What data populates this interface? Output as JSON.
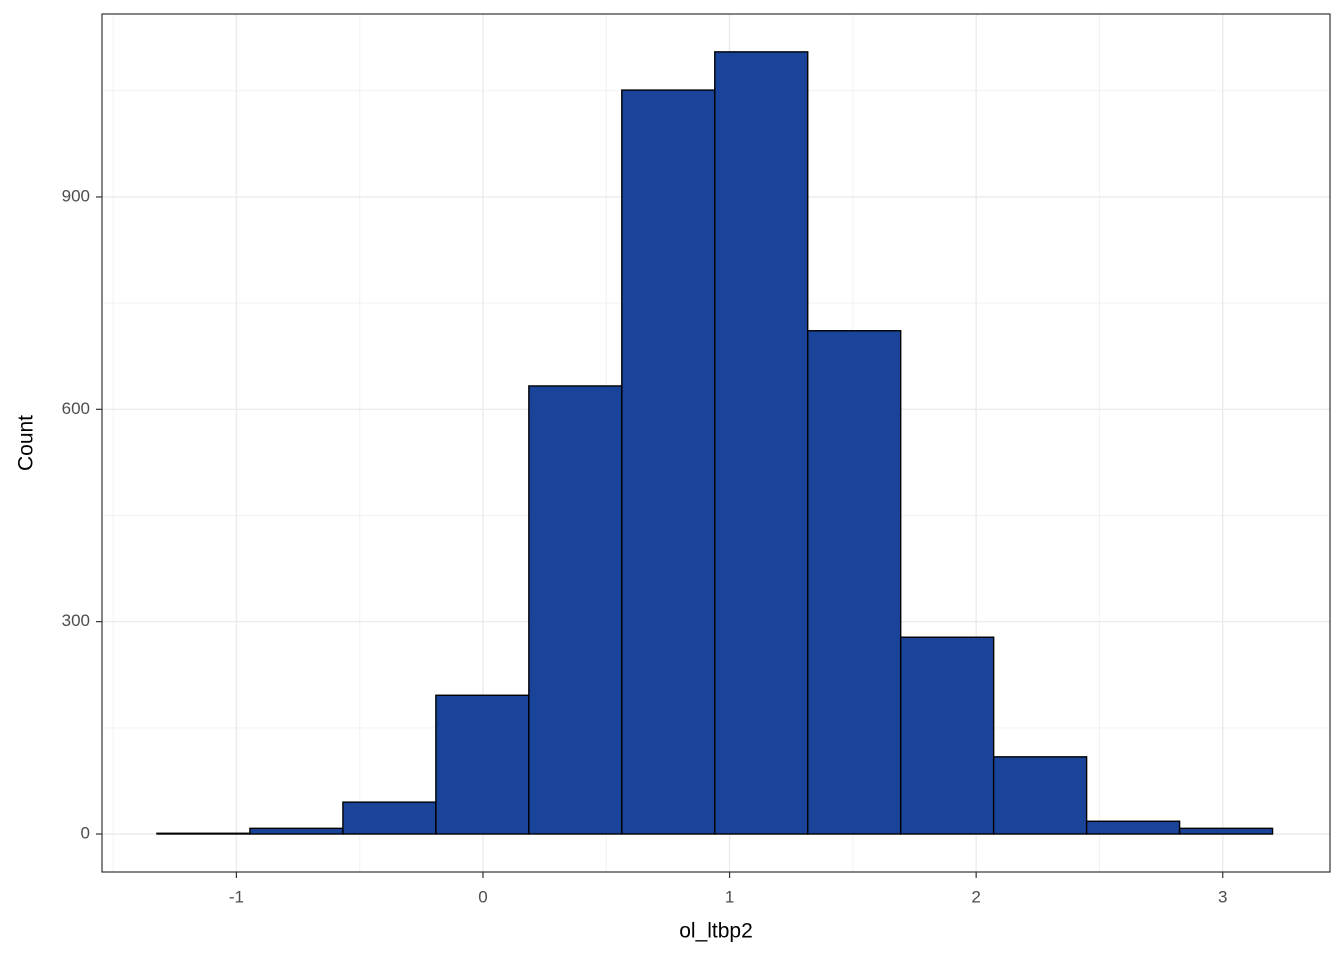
{
  "chart_data": {
    "type": "histogram",
    "xlabel": "ol_ltbp2",
    "ylabel": "Count",
    "bins": [
      -1.322,
      -0.945,
      -0.568,
      -0.191,
      0.186,
      0.563,
      0.94,
      1.317,
      1.694,
      2.071,
      2.448,
      2.825,
      3.202
    ],
    "values": [
      1,
      8,
      45,
      196,
      633,
      1051,
      1105,
      711,
      278,
      109,
      18,
      8
    ],
    "color": "#1a4499",
    "edgecolor": "#000000",
    "xlim": [
      -1.545,
      3.435
    ],
    "ylim": [
      -53.7,
      1158.5
    ],
    "xticks": [
      -1,
      0,
      1,
      2,
      3
    ],
    "yticks": [
      0,
      300,
      600,
      900
    ],
    "grid": true
  }
}
